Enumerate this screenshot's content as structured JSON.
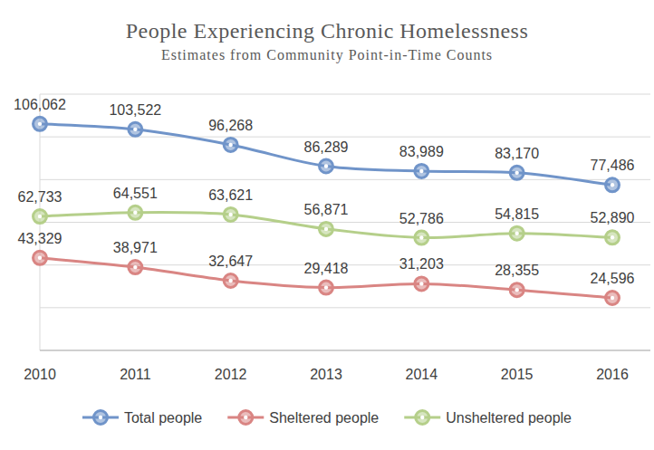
{
  "chart_data": {
    "type": "line",
    "title": "People Experiencing Chronic Homelessness",
    "subtitle": "Estimates from Community Point-in-Time Counts",
    "categories": [
      "2010",
      "2011",
      "2012",
      "2013",
      "2014",
      "2015",
      "2016"
    ],
    "series": [
      {
        "name": "Total people",
        "color": "#7094c9",
        "marker": "circle",
        "line_style": "smooth",
        "values": [
          106062,
          103522,
          96268,
          86289,
          83989,
          83170,
          77486
        ],
        "value_labels": [
          "106,062",
          "103,522",
          "96,268",
          "86,289",
          "83,989",
          "83,170",
          "77,486"
        ]
      },
      {
        "name": "Sheltered people",
        "color": "#d98583",
        "marker": "circle",
        "line_style": "smooth",
        "values": [
          43329,
          38971,
          32647,
          29418,
          31203,
          28355,
          24596
        ],
        "value_labels": [
          "43,329",
          "38,971",
          "32,647",
          "29,418",
          "31,203",
          "28,355",
          "24,596"
        ]
      },
      {
        "name": "Unsheltered people",
        "color": "#b5cf8a",
        "marker": "circle",
        "line_style": "smooth",
        "values": [
          62733,
          64551,
          63621,
          56871,
          52786,
          54815,
          52890
        ],
        "value_labels": [
          "62,733",
          "64,551",
          "63,621",
          "56,871",
          "52,786",
          "54,815",
          "52,890"
        ]
      }
    ],
    "ylim": [
      0,
      120000
    ],
    "yticks": [
      0,
      20000,
      40000,
      60000,
      80000,
      100000,
      120000
    ],
    "grid": true,
    "tick_labels": "x",
    "data_labels": true,
    "legend": "bottom"
  }
}
